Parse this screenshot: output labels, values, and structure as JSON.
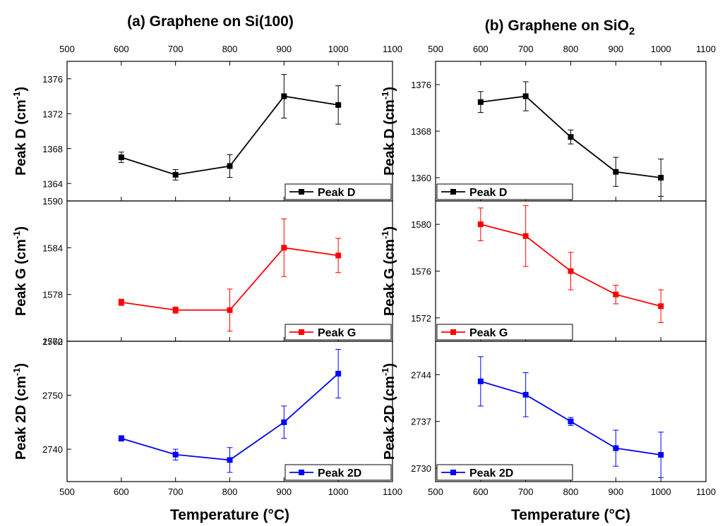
{
  "chart_data": [
    {
      "type": "line",
      "title": "(a) Graphene on Si(100)",
      "xlabel": "Temperature (°C)",
      "xlim": [
        500,
        1100
      ],
      "xticks": [
        500,
        600,
        700,
        800,
        900,
        1000,
        1100
      ],
      "x": [
        600,
        700,
        800,
        900,
        1000
      ],
      "panels": [
        {
          "ylabel": "Peak D (cm-1)",
          "ylim": [
            1362,
            1378
          ],
          "yticks": [
            1364,
            1368,
            1372,
            1376
          ],
          "series": [
            {
              "name": "Peak D",
              "color": "#000000",
              "values": [
                1367,
                1365,
                1366,
                1374,
                1373
              ],
              "errors": [
                0.6,
                0.6,
                1.3,
                2.5,
                2.2
              ]
            }
          ],
          "legend_position": "bottom-right"
        },
        {
          "ylabel": "Peak G (cm-1)",
          "ylim": [
            1572,
            1590
          ],
          "yticks": [
            1572,
            1578,
            1584,
            1590
          ],
          "series": [
            {
              "name": "Peak G",
              "color": "#ff0000",
              "values": [
                1577,
                1576,
                1576,
                1584,
                1583
              ],
              "errors": [
                0.4,
                0.4,
                2.7,
                3.7,
                2.2
              ]
            }
          ],
          "legend_position": "bottom-right"
        },
        {
          "ylabel": "Peak 2D (cm-1)",
          "ylim": [
            2734,
            2760
          ],
          "yticks": [
            2740,
            2750,
            2760
          ],
          "series": [
            {
              "name": "Peak 2D",
              "color": "#0000ff",
              "values": [
                2742,
                2739,
                2738,
                2745,
                2754
              ],
              "errors": [
                0.5,
                1.0,
                2.3,
                3.0,
                4.5
              ]
            }
          ],
          "legend_position": "bottom-right"
        }
      ]
    },
    {
      "type": "line",
      "title": "(b) Graphene on SiO2",
      "xlabel": "Temperature (°C)",
      "xlim": [
        500,
        1100
      ],
      "xticks": [
        500,
        600,
        700,
        800,
        900,
        1000,
        1100
      ],
      "x": [
        600,
        700,
        800,
        900,
        1000
      ],
      "panels": [
        {
          "ylabel": "Peak D (cm-1)",
          "ylim": [
            1356,
            1380
          ],
          "yticks": [
            1360,
            1368,
            1376
          ],
          "series": [
            {
              "name": "Peak D",
              "color": "#000000",
              "values": [
                1373,
                1374,
                1367,
                1361,
                1360
              ],
              "errors": [
                1.8,
                2.5,
                1.2,
                2.5,
                3.2
              ]
            }
          ],
          "legend_position": "bottom-left"
        },
        {
          "ylabel": "Peak G (cm-1)",
          "ylim": [
            1570,
            1582
          ],
          "yticks": [
            1572,
            1576,
            1580
          ],
          "series": [
            {
              "name": "Peak G",
              "color": "#ff0000",
              "values": [
                1580,
                1579,
                1576,
                1574,
                1573
              ],
              "errors": [
                1.4,
                2.6,
                1.6,
                0.8,
                1.4
              ]
            }
          ],
          "legend_position": "bottom-left"
        },
        {
          "ylabel": "Peak 2D (cm-1)",
          "ylim": [
            2728,
            2749
          ],
          "yticks": [
            2730,
            2737,
            2744
          ],
          "series": [
            {
              "name": "Peak 2D",
              "color": "#0000ff",
              "values": [
                2743,
                2741,
                2737,
                2733,
                2732
              ],
              "errors": [
                3.7,
                3.3,
                0.6,
                2.7,
                3.4
              ]
            }
          ],
          "legend_position": "bottom-left"
        }
      ]
    }
  ]
}
